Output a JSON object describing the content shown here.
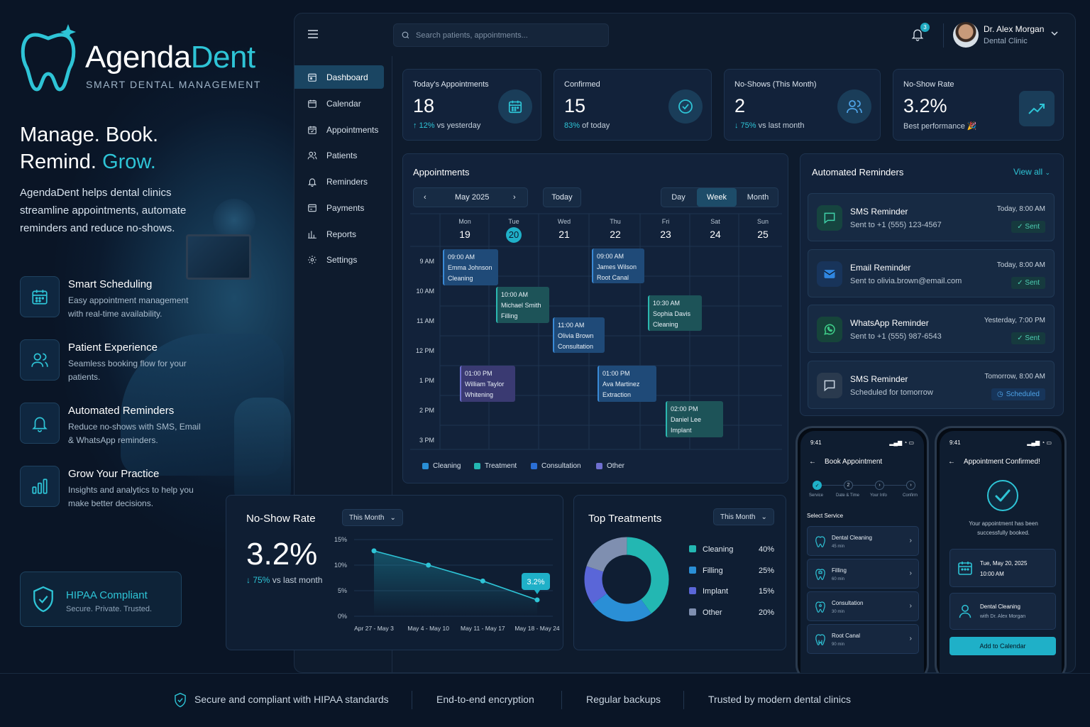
{
  "brand": {
    "name_main": "Agenda",
    "name_accent": "Dent",
    "subtitle": "SMART DENTAL MANAGEMENT"
  },
  "hero": {
    "line1": "Manage. Book.",
    "line2_main": "Remind.",
    "line2_accent": "Grow.",
    "description": "AgendaDent helps dental clinics streamline appointments, automate reminders and reduce no-shows."
  },
  "features": [
    {
      "title": "Smart Scheduling",
      "desc": "Easy appointment management with real-time availability."
    },
    {
      "title": "Patient Experience",
      "desc": "Seamless booking flow for your patients."
    },
    {
      "title": "Automated Reminders",
      "desc": "Reduce no-shows with SMS, Email & WhatsApp reminders."
    },
    {
      "title": "Grow Your Practice",
      "desc": "Insights and analytics to help you make better decisions."
    }
  ],
  "hipaa": {
    "title": "HIPAA Compliant",
    "desc": "Secure. Private. Trusted."
  },
  "topbar": {
    "search_placeholder": "Search patients, appointments...",
    "notifications": "3",
    "user_name": "Dr. Alex Morgan",
    "user_role": "Dental Clinic"
  },
  "nav": [
    {
      "label": "Dashboard",
      "icon": "dashboard-icon"
    },
    {
      "label": "Calendar",
      "icon": "calendar-icon"
    },
    {
      "label": "Appointments",
      "icon": "appointments-icon"
    },
    {
      "label": "Patients",
      "icon": "patients-icon"
    },
    {
      "label": "Reminders",
      "icon": "bell-icon"
    },
    {
      "label": "Payments",
      "icon": "payments-icon"
    },
    {
      "label": "Reports",
      "icon": "reports-icon"
    },
    {
      "label": "Settings",
      "icon": "gear-icon"
    }
  ],
  "kpis": [
    {
      "label": "Today's Appointments",
      "value": "18",
      "delta": "↑ 12%",
      "delta_text": " vs yesterday"
    },
    {
      "label": "Confirmed",
      "value": "15",
      "delta": "83%",
      "delta_text": " of today"
    },
    {
      "label": "No-Shows (This Month)",
      "value": "2",
      "delta": "↓ 75%",
      "delta_text": " vs last month"
    },
    {
      "label": "No-Show Rate",
      "value": "3.2%",
      "delta": "",
      "delta_text": "Best performance 🎉"
    }
  ],
  "calendar": {
    "title": "Appointments",
    "month": "May 2025",
    "today_label": "Today",
    "views": [
      "Day",
      "Week",
      "Month"
    ],
    "days": [
      {
        "name": "Mon",
        "date": "19"
      },
      {
        "name": "Tue",
        "date": "20"
      },
      {
        "name": "Wed",
        "date": "21"
      },
      {
        "name": "Thu",
        "date": "22"
      },
      {
        "name": "Fri",
        "date": "23"
      },
      {
        "name": "Sat",
        "date": "24"
      },
      {
        "name": "Sun",
        "date": "25"
      }
    ],
    "hours": [
      "9 AM",
      "10 AM",
      "11 AM",
      "12 PM",
      "1 PM",
      "2 PM",
      "3 PM"
    ],
    "appointments": [
      {
        "time": "09:00 AM",
        "name": "Emma Johnson",
        "type": "Cleaning"
      },
      {
        "time": "10:00 AM",
        "name": "Michael Smith",
        "type": "Filling"
      },
      {
        "time": "11:00 AM",
        "name": "Olivia Brown",
        "type": "Consultation"
      },
      {
        "time": "09:00 AM",
        "name": "James Wilson",
        "type": "Root Canal"
      },
      {
        "time": "10:30 AM",
        "name": "Sophia Davis",
        "type": "Cleaning"
      },
      {
        "time": "01:00 PM",
        "name": "William Taylor",
        "type": "Whitening"
      },
      {
        "time": "01:00 PM",
        "name": "Ava Martinez",
        "type": "Extraction"
      },
      {
        "time": "02:00 PM",
        "name": "Daniel Lee",
        "type": "Implant"
      }
    ],
    "legend": [
      "Cleaning",
      "Treatment",
      "Consultation",
      "Other"
    ]
  },
  "reminders": {
    "title": "Automated Reminders",
    "view_all": "View all",
    "items": [
      {
        "title": "SMS Reminder",
        "sub": "Sent to +1 (555) 123-4567",
        "date": "Today, 8:00 AM",
        "status": "✓  Sent",
        "icon": "sms-icon"
      },
      {
        "title": "Email Reminder",
        "sub": "Sent to olivia.brown@email.com",
        "date": "Today, 8:00 AM",
        "status": "✓  Sent",
        "icon": "email-icon"
      },
      {
        "title": "WhatsApp Reminder",
        "sub": "Sent to +1 (555) 987-6543",
        "date": "Yesterday, 7:00 PM",
        "status": "✓  Sent",
        "icon": "whatsapp-icon"
      },
      {
        "title": "SMS Reminder",
        "sub": "Scheduled for tomorrow",
        "date": "Tomorrow, 8:00 AM",
        "status": "Scheduled",
        "icon": "sms-icon"
      }
    ]
  },
  "noshow": {
    "title": "No-Show Rate",
    "period": "This Month",
    "value": "3.2%",
    "delta": "↓ 75%",
    "delta_text": " vs last month",
    "callout": "3.2%"
  },
  "treatments": {
    "title": "Top Treatments",
    "period": "This Month",
    "colors": [
      "#23b7b2",
      "#2a8fd6",
      "#5a66d8",
      "#7f8fb0"
    ]
  },
  "chart_data": [
    {
      "type": "line",
      "title": "No-Show Rate",
      "categories": [
        "Apr 27 - May 3",
        "May 4 - May 10",
        "May 11 - May 17",
        "May 18 - May 24"
      ],
      "values": [
        12.8,
        10.0,
        6.9,
        3.2
      ],
      "ylim": [
        0,
        15
      ],
      "yticks": [
        "0%",
        "5%",
        "10%",
        "15%"
      ],
      "ytick_values": [
        0,
        5,
        10,
        15
      ]
    },
    {
      "type": "pie",
      "title": "Top Treatments",
      "labels": [
        "Cleaning",
        "Filling",
        "Implant",
        "Other"
      ],
      "values": [
        40,
        25,
        15,
        20
      ],
      "value_labels": [
        "40%",
        "25%",
        "15%",
        "20%"
      ]
    }
  ],
  "phone1": {
    "time": "9:41",
    "title": "Book Appointment",
    "steps": [
      {
        "num": "✓",
        "label": "Service"
      },
      {
        "num": "2",
        "label": "Date & Time"
      },
      {
        "num": "›",
        "label": "Your Info"
      },
      {
        "num": "›",
        "label": "Confirm"
      }
    ],
    "section": "Select Service",
    "services": [
      {
        "name": "Dental Cleaning",
        "dur": "45 min"
      },
      {
        "name": "Filling",
        "dur": "60 min"
      },
      {
        "name": "Consultation",
        "dur": "30 min"
      },
      {
        "name": "Root Canal",
        "dur": "90 min"
      }
    ]
  },
  "phone2": {
    "time": "9:41",
    "title": "Appointment Confirmed!",
    "message": "Your appointment has been successfully booked.",
    "date": "Tue, May 20, 2025",
    "time_slot": "10:00 AM",
    "service": "Dental Cleaning",
    "doctor": "with Dr. Alex Morgan",
    "button": "Add to Calendar"
  },
  "footer": [
    "Secure and compliant with HIPAA standards",
    "End-to-end encryption",
    "Regular backups",
    "Trusted by modern dental clinics"
  ]
}
